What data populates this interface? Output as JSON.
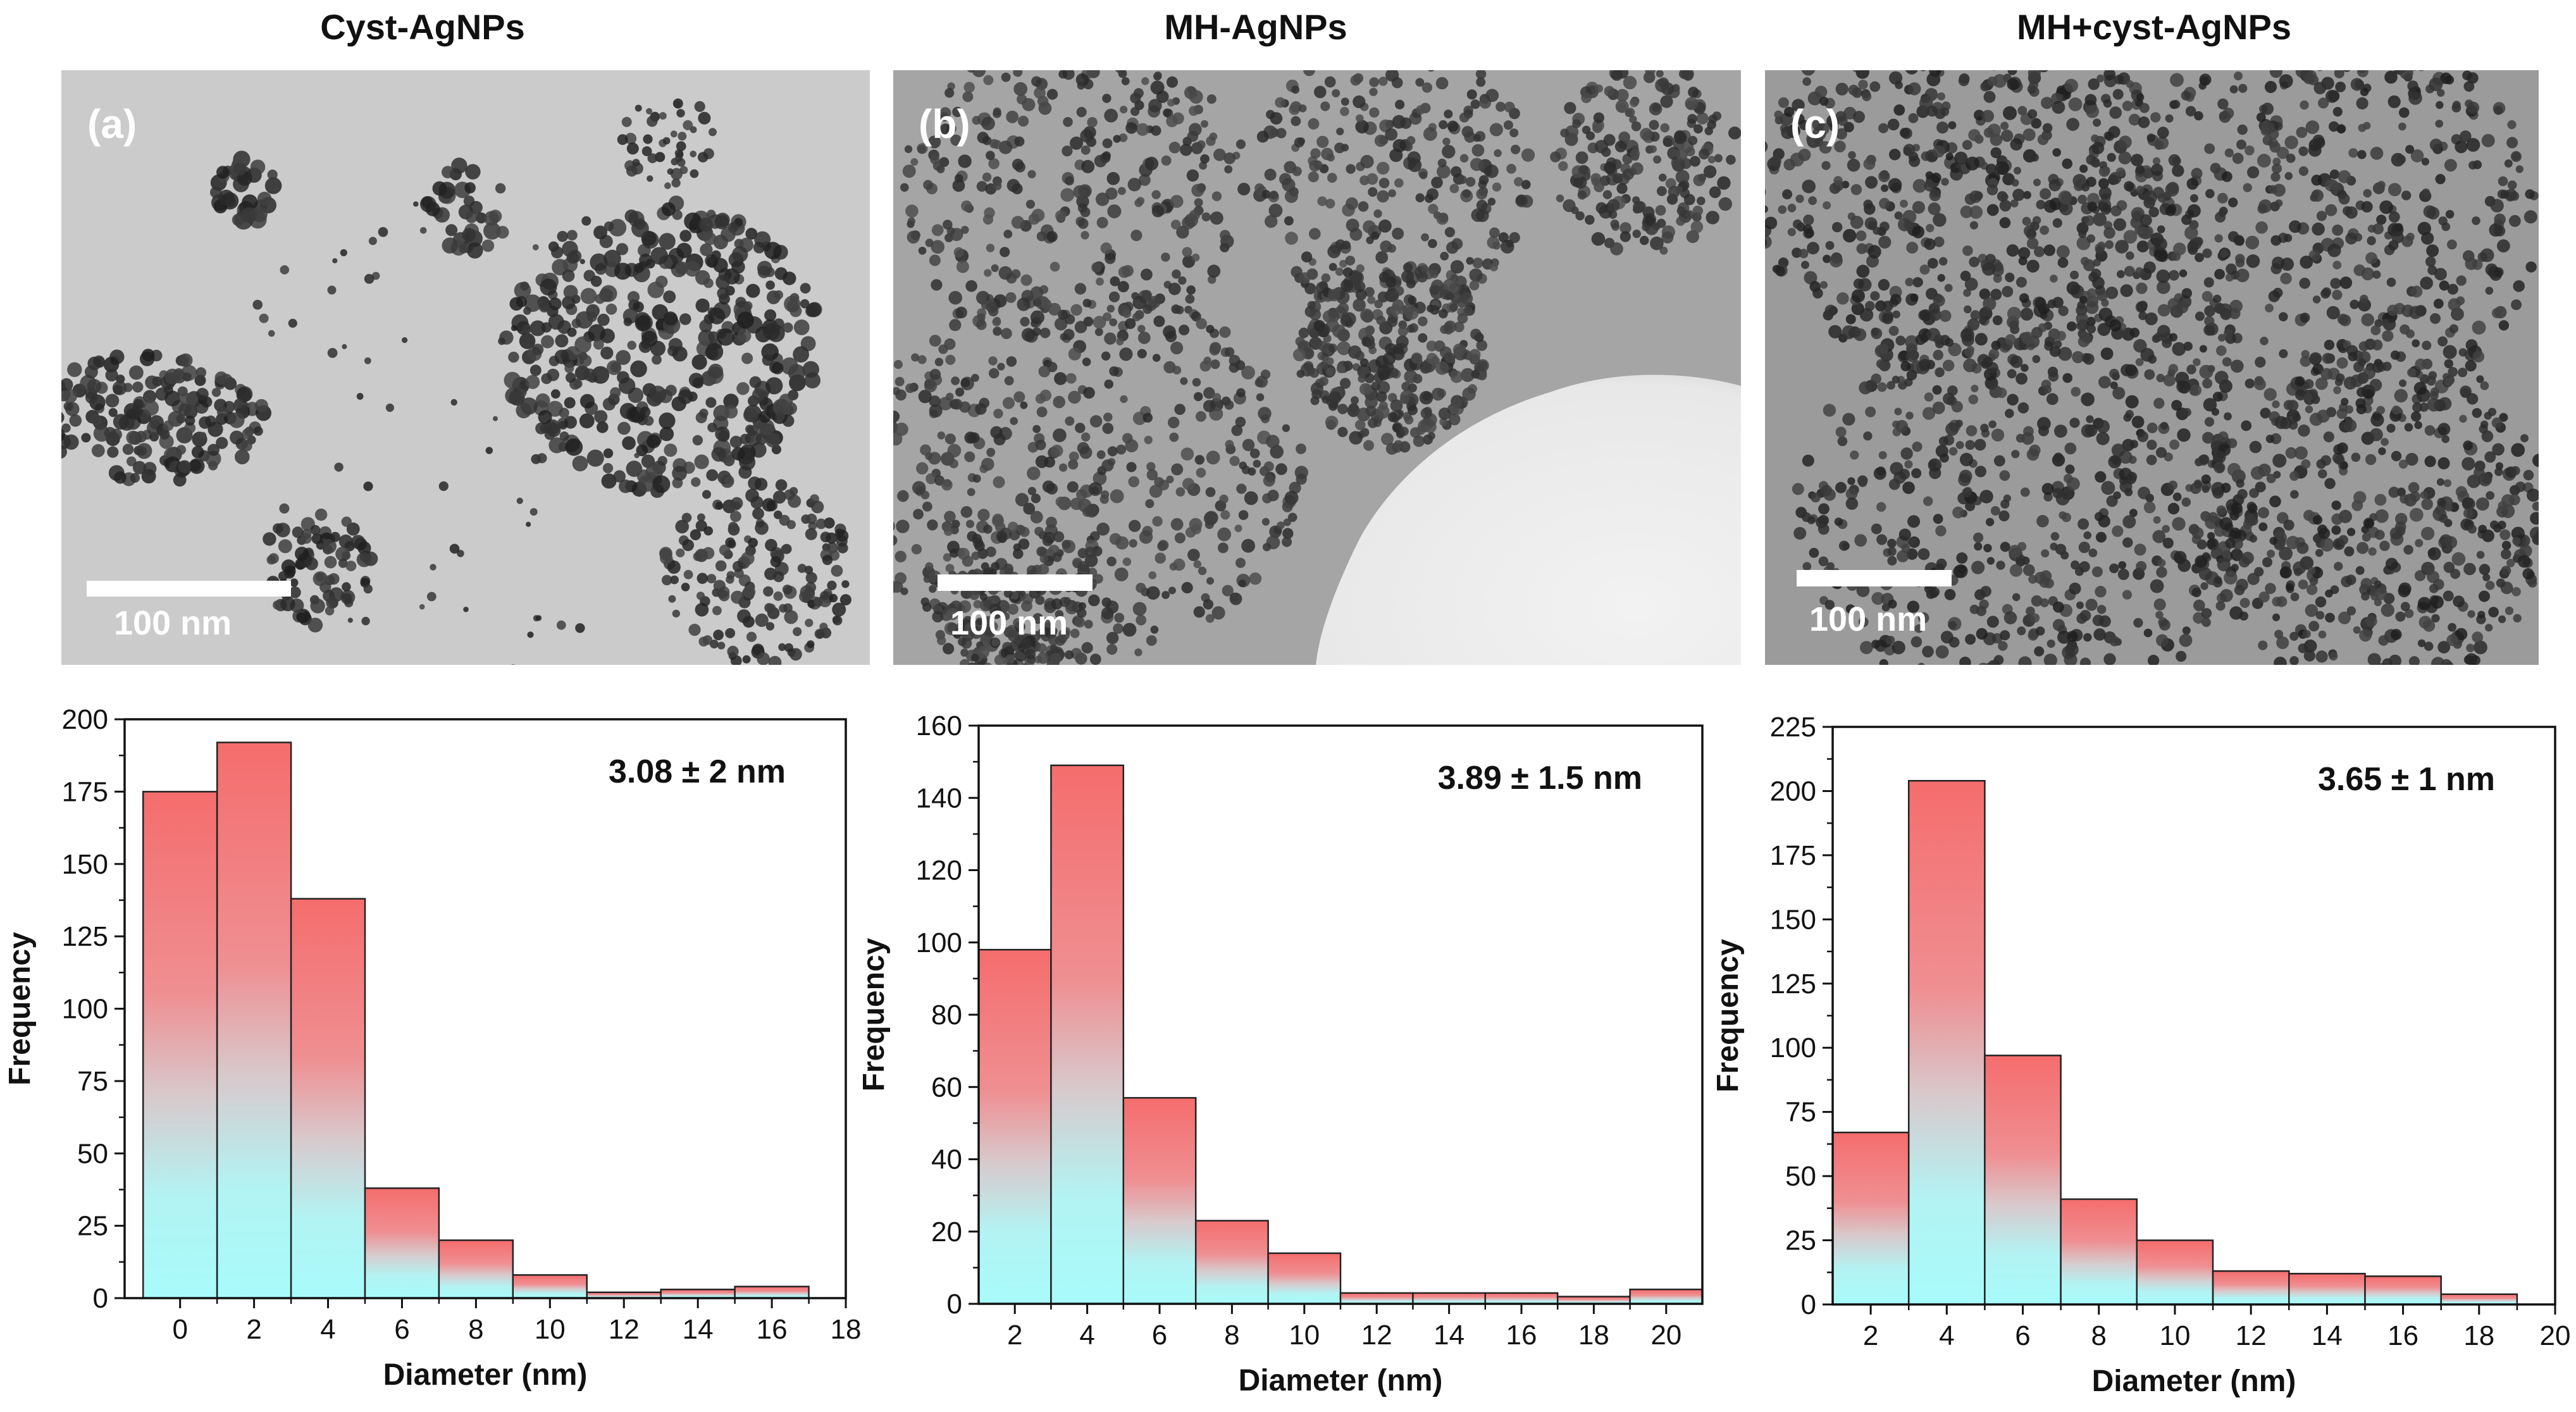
{
  "panel_titles": [
    "Cyst-AgNPs",
    "MH-AgNPs",
    "MH+cyst-AgNPs"
  ],
  "panel_labels": [
    "(a)",
    "(b)",
    "(c)"
  ],
  "scale_bar_labels": [
    "100 nm",
    "100 nm",
    "100 nm"
  ],
  "colors": {
    "bar_top": "#f56d6d",
    "bar_mid": "#e3b4b8",
    "bar_bottom": "#a8fbfb",
    "image_background": "#cfcfcf",
    "particle": "#2a2a2a"
  },
  "chart_data": [
    {
      "type": "bar",
      "histogram": true,
      "title": "",
      "xlabel": "Diameter (nm)",
      "ylabel": "Frequency",
      "annotation": "3.08 ± 2 nm",
      "bin_width": 2,
      "x": [
        0,
        2,
        4,
        6,
        8,
        10,
        12,
        14,
        16
      ],
      "values": [
        175,
        192,
        138,
        38,
        20,
        8,
        2,
        3,
        4
      ],
      "xlim": [
        -1.5,
        18
      ],
      "ylim": [
        0,
        200
      ],
      "xticks": [
        0,
        2,
        4,
        6,
        8,
        10,
        12,
        14,
        16,
        18
      ],
      "yticks": [
        0,
        25,
        50,
        75,
        100,
        125,
        150,
        175,
        200
      ],
      "grid": false
    },
    {
      "type": "bar",
      "histogram": true,
      "title": "",
      "xlabel": "Diameter (nm)",
      "ylabel": "Frequency",
      "annotation": "3.89 ± 1.5 nm",
      "bin_width": 2,
      "x": [
        2,
        4,
        6,
        8,
        10,
        12,
        14,
        16,
        18,
        20
      ],
      "values": [
        98,
        149,
        57,
        23,
        14,
        3,
        3,
        3,
        2,
        4
      ],
      "xlim": [
        1,
        21
      ],
      "ylim": [
        0,
        160
      ],
      "xticks": [
        2,
        4,
        6,
        8,
        10,
        12,
        14,
        16,
        18,
        20
      ],
      "yticks": [
        0,
        20,
        40,
        60,
        80,
        100,
        120,
        140,
        160
      ],
      "grid": false
    },
    {
      "type": "bar",
      "histogram": true,
      "title": "",
      "xlabel": "Diameter (nm)",
      "ylabel": "Frequency",
      "annotation": "3.65 ± 1 nm",
      "bin_width": 2,
      "x": [
        2,
        4,
        6,
        8,
        10,
        12,
        14,
        16,
        18
      ],
      "values": [
        67,
        204,
        97,
        41,
        25,
        13,
        12,
        11,
        4
      ],
      "xlim": [
        1,
        20
      ],
      "ylim": [
        0,
        225
      ],
      "xticks": [
        2,
        4,
        6,
        8,
        10,
        12,
        14,
        16,
        18,
        20
      ],
      "yticks": [
        0,
        25,
        50,
        75,
        100,
        125,
        150,
        175,
        200,
        225
      ],
      "grid": false
    }
  ]
}
